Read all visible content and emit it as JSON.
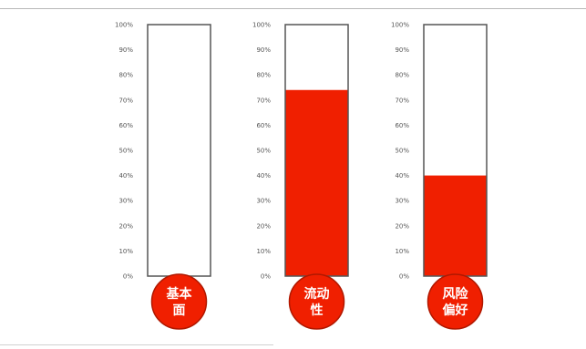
{
  "chart_data": {
    "type": "bar",
    "subtype": "thermometer-gauges",
    "title": "",
    "xlabel": "",
    "ylabel": "",
    "ylim": [
      0,
      100
    ],
    "yticks": [
      "0%",
      "10%",
      "20%",
      "30%",
      "40%",
      "50%",
      "60%",
      "70%",
      "80%",
      "90%",
      "100%"
    ],
    "categories": [
      {
        "lines": [
          "基本",
          "面"
        ]
      },
      {
        "lines": [
          "流动",
          "性"
        ]
      },
      {
        "lines": [
          "风险",
          "偏好"
        ]
      }
    ],
    "values": [
      0,
      74,
      40
    ],
    "grid": false,
    "legend": "none",
    "colors": {
      "fill": "#f01f00",
      "bulb": "#f01f00",
      "bulb_border": "#b01800",
      "tube_border": "#555555",
      "bulb_text": "#ffffff"
    }
  }
}
